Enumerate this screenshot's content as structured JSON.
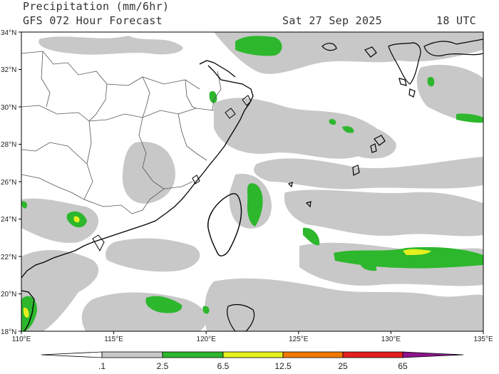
{
  "header": {
    "title": "Precipitation (mm/6hr)",
    "subtitle": "GFS 072 Hour Forecast",
    "valid_date": "Sat 27 Sep 2025",
    "valid_time": "18 UTC"
  },
  "axes": {
    "lat_labels": [
      "34°N",
      "32°N",
      "30°N",
      "28°N",
      "26°N",
      "24°N",
      "22°N",
      "20°N",
      "18°N"
    ],
    "lon_labels": [
      "110°E",
      "115°E",
      "120°E",
      "125°E",
      "130°E",
      "135°E"
    ]
  },
  "colorbar": {
    "labels": [
      ".1",
      "2.5",
      "6.5",
      "12.5",
      "25",
      "65"
    ],
    "colors": [
      "#ffffff",
      "#c8c8c8",
      "#2db72d",
      "#e6f01e",
      "#f07800",
      "#e61e1e",
      "#8c148c"
    ]
  },
  "colors": {
    "light_precip": "#c8c8c8",
    "moderate_precip": "#2db72d",
    "heavy_precip": "#e6f01e",
    "coastline": "#000000",
    "borders": "#555555"
  }
}
